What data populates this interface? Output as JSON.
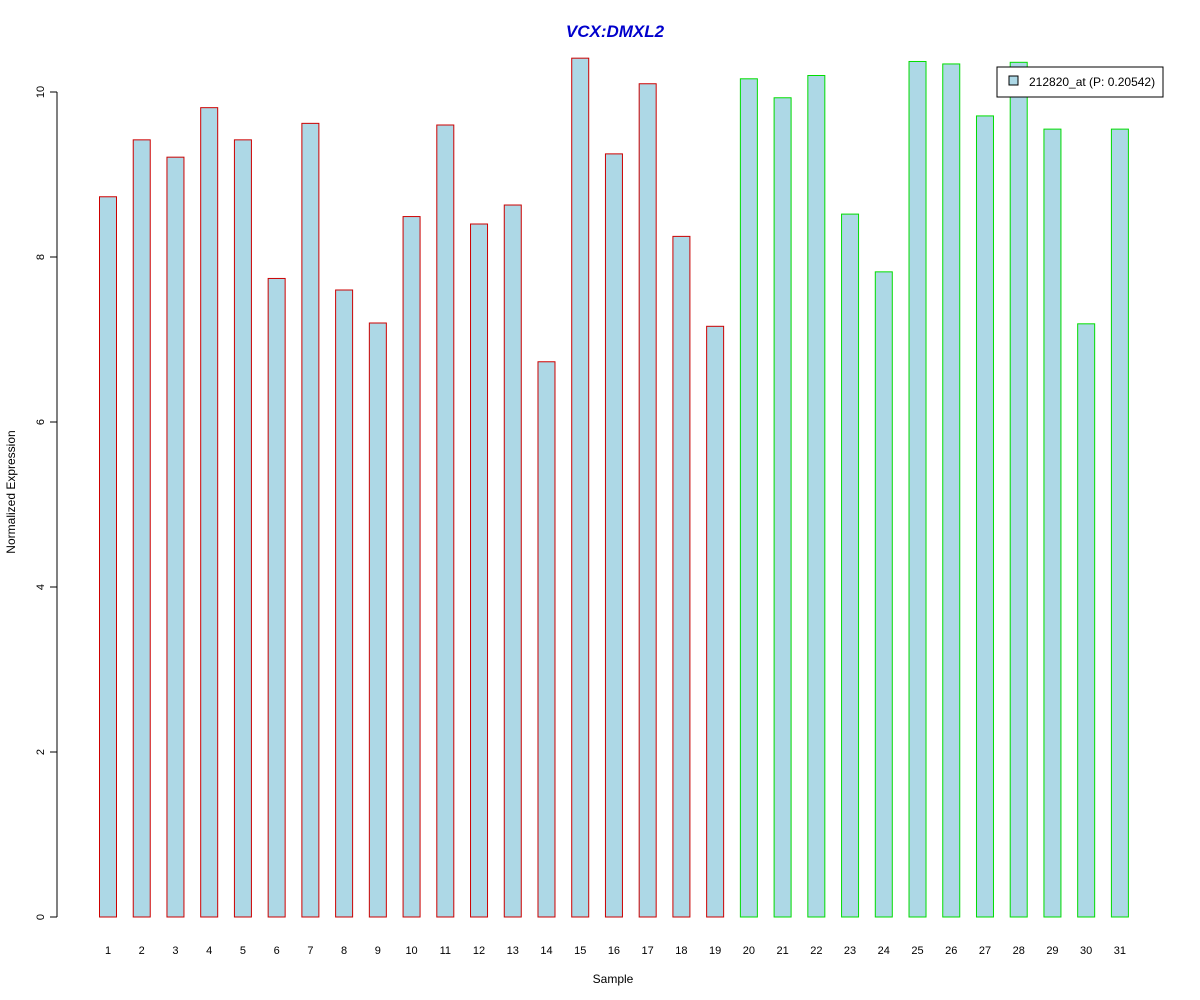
{
  "chart_data": {
    "type": "bar",
    "title": "VCX:DMXL2",
    "xlabel": "Sample",
    "ylabel": "Normalized Expression",
    "ylim": [
      0,
      10.5
    ],
    "yticks": [
      "0",
      "2",
      "4",
      "6",
      "8",
      "10"
    ],
    "grid": false,
    "legend_position": "top-right",
    "categories": [
      "1",
      "2",
      "3",
      "4",
      "5",
      "6",
      "7",
      "8",
      "9",
      "10",
      "11",
      "12",
      "13",
      "14",
      "15",
      "16",
      "17",
      "18",
      "19",
      "20",
      "21",
      "22",
      "23",
      "24",
      "25",
      "26",
      "27",
      "28",
      "29",
      "30",
      "31"
    ],
    "series": [
      {
        "name": "212820_at (P: 0.20542)",
        "values": [
          8.73,
          9.42,
          9.21,
          9.81,
          9.42,
          7.74,
          9.62,
          7.6,
          7.2,
          8.49,
          9.6,
          8.4,
          8.63,
          6.73,
          10.41,
          9.25,
          10.1,
          8.25,
          7.16,
          10.16,
          9.93,
          10.2,
          8.52,
          7.82,
          10.37,
          10.34,
          9.71,
          10.36,
          9.55,
          7.19,
          9.55
        ]
      }
    ],
    "group_borders": [
      "#cc0000",
      "#cc0000",
      "#cc0000",
      "#cc0000",
      "#cc0000",
      "#cc0000",
      "#cc0000",
      "#cc0000",
      "#cc0000",
      "#cc0000",
      "#cc0000",
      "#cc0000",
      "#cc0000",
      "#cc0000",
      "#cc0000",
      "#cc0000",
      "#cc0000",
      "#cc0000",
      "#cc0000",
      "#00dd00",
      "#00dd00",
      "#00dd00",
      "#00dd00",
      "#00dd00",
      "#00dd00",
      "#00dd00",
      "#00dd00",
      "#00dd00",
      "#00dd00",
      "#00dd00",
      "#00dd00"
    ]
  },
  "colors": {
    "bar_fill": "#add8e6",
    "title": "#0000cc",
    "axis": "#000000"
  }
}
